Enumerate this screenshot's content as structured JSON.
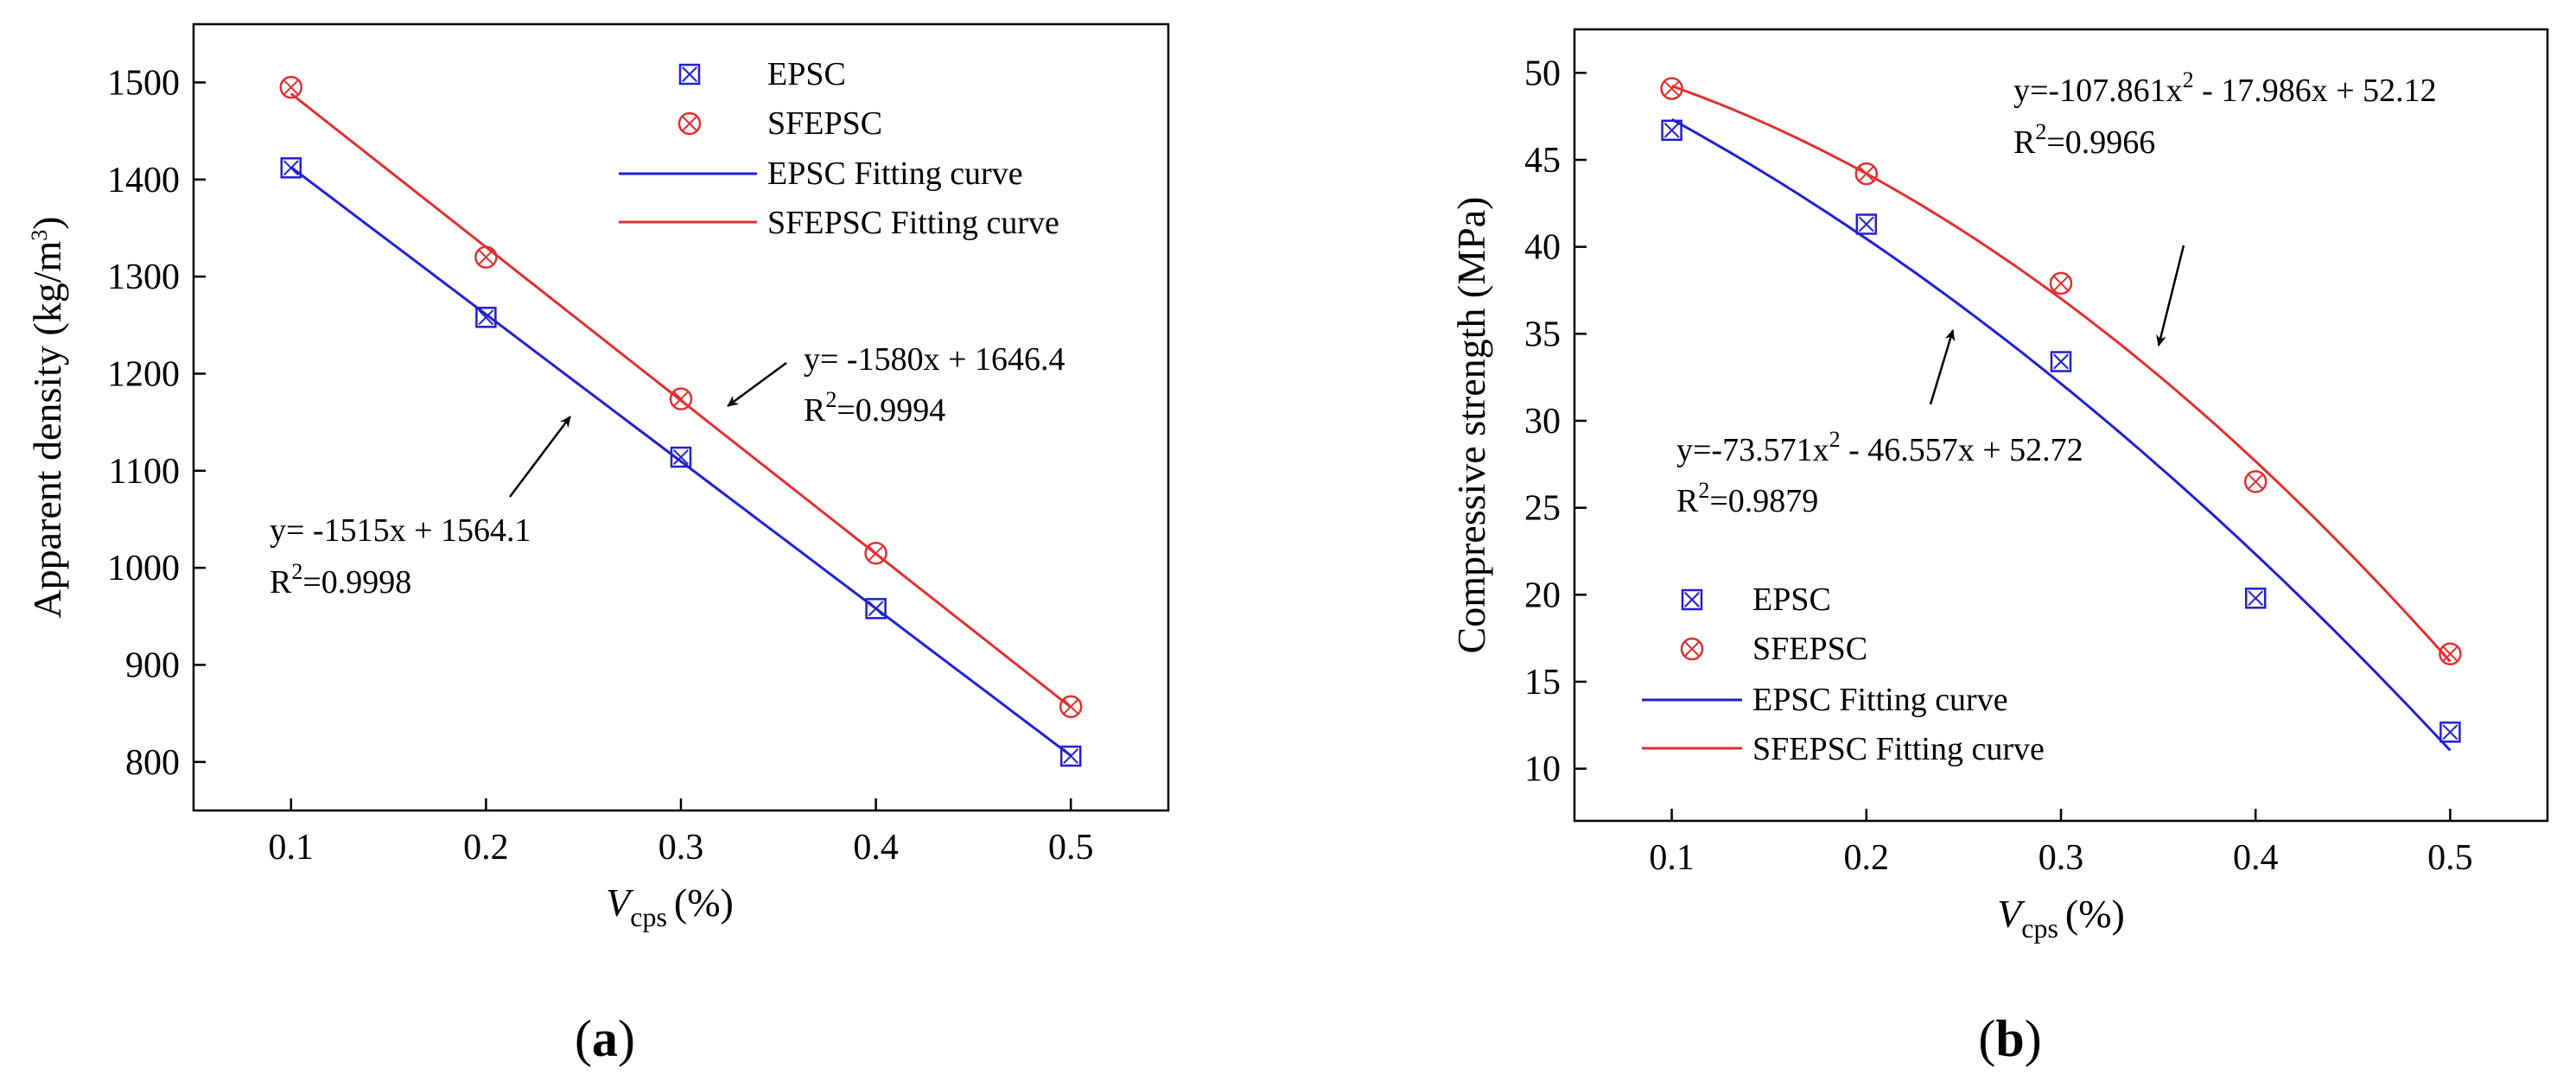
{
  "colors": {
    "epsc": "#2020d0",
    "sfepsc": "#e03030",
    "axis": "#000000"
  },
  "chart_data": [
    {
      "type": "scatter",
      "panel_label": "a",
      "xlabel": "V",
      "xlabel_sub": "cps",
      "xlabel_unit": "(%)",
      "ylabel": "Apparent density (kg/m",
      "ylabel_sup": "3",
      "ylabel_end": ")",
      "xlim": [
        0.05,
        0.55
      ],
      "ylim": [
        750,
        1560
      ],
      "xticks": [
        "0.1",
        "0.2",
        "0.3",
        "0.4",
        "0.5"
      ],
      "yticks": [
        "800",
        "900",
        "1000",
        "1100",
        "1200",
        "1300",
        "1400",
        "1500"
      ],
      "series": [
        {
          "name": "EPSC",
          "marker": "square-x",
          "color": "#2020d0",
          "x": [
            0.1,
            0.2,
            0.3,
            0.4,
            0.5
          ],
          "y": [
            1412,
            1258,
            1114,
            958,
            806
          ]
        },
        {
          "name": "SFEPSC",
          "marker": "circle-x",
          "color": "#e03030",
          "x": [
            0.1,
            0.2,
            0.3,
            0.4,
            0.5
          ],
          "y": [
            1495,
            1320,
            1174,
            1015,
            857
          ]
        }
      ],
      "fits": [
        {
          "name": "EPSC Fitting curve",
          "color": "#2020d0",
          "coeffs": [
            0,
            -1515,
            1564.1
          ]
        },
        {
          "name": "SFEPSC Fitting curve",
          "color": "#e03030",
          "coeffs": [
            0,
            -1580,
            1646.4
          ]
        }
      ],
      "annotations": [
        {
          "eq": "y= -1580x + 1646.4",
          "r2_prefix": "R",
          "r2_sup": "2",
          "r2_value": "=0.9994"
        },
        {
          "eq": "y= -1515x + 1564.1",
          "r2_prefix": "R",
          "r2_sup": "2",
          "r2_value": "=0.9998"
        }
      ],
      "legend": [
        "EPSC",
        "SFEPSC",
        "EPSC Fitting curve",
        "SFEPSC Fitting curve"
      ]
    },
    {
      "type": "scatter",
      "panel_label": "b",
      "xlabel": "V",
      "xlabel_sub": "cps",
      "xlabel_unit": "(%)",
      "ylabel": "Compressive strength (MPa)",
      "xlim": [
        0.05,
        0.55
      ],
      "ylim": [
        7,
        52.5
      ],
      "xticks": [
        "0.1",
        "0.2",
        "0.3",
        "0.4",
        "0.5"
      ],
      "yticks": [
        "10",
        "15",
        "20",
        "25",
        "30",
        "35",
        "40",
        "45",
        "50"
      ],
      "series": [
        {
          "name": "EPSC",
          "marker": "square-x",
          "color": "#2020d0",
          "x": [
            0.1,
            0.2,
            0.3,
            0.4,
            0.5
          ],
          "y": [
            46.7,
            41.3,
            33.4,
            19.8,
            12.1
          ]
        },
        {
          "name": "SFEPSC",
          "marker": "circle-x",
          "color": "#e03030",
          "x": [
            0.1,
            0.2,
            0.3,
            0.4,
            0.5
          ],
          "y": [
            49.1,
            44.2,
            37.9,
            26.5,
            16.6
          ]
        }
      ],
      "fits": [
        {
          "name": "EPSC Fitting curve",
          "color": "#2020d0",
          "coeffs": [
            -73.571,
            -46.557,
            52.72
          ]
        },
        {
          "name": "SFEPSC Fitting curve",
          "color": "#e03030",
          "coeffs": [
            -107.861,
            -17.986,
            52.12
          ]
        }
      ],
      "annotations": [
        {
          "eq_a": "y=-107.861x",
          "eq_sup": "2",
          "eq_b": " - 17.986x + 52.12",
          "r2_prefix": "R",
          "r2_sup": "2",
          "r2_value": "=0.9966"
        },
        {
          "eq_a": "y=-73.571x",
          "eq_sup": "2",
          "eq_b": " - 46.557x + 52.72",
          "r2_prefix": "R",
          "r2_sup": "2",
          "r2_value": "=0.9879"
        }
      ],
      "legend": [
        "EPSC",
        "SFEPSC",
        "EPSC Fitting curve",
        "SFEPSC Fitting curve"
      ]
    }
  ]
}
